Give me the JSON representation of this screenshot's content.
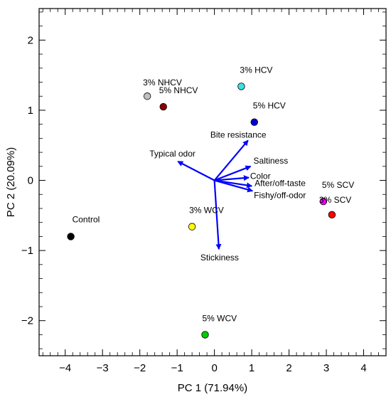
{
  "chart_data": {
    "type": "scatter",
    "xlabel": "PC 1 (71.94%)",
    "ylabel": "PC 2 (20.09%)",
    "xlim": [
      -4.7,
      4.6
    ],
    "ylim": [
      -2.5,
      2.45
    ],
    "xticks": [
      -4,
      -3,
      -2,
      -1,
      0,
      1,
      2,
      3,
      4
    ],
    "yticks": [
      -2,
      -1,
      0,
      1,
      2
    ],
    "grid": false,
    "points": [
      {
        "label": "Control",
        "x": -3.85,
        "y": -0.8,
        "color": "#000000"
      },
      {
        "label": "3% NHCV",
        "x": -1.8,
        "y": 1.2,
        "color": "#c0c0c0"
      },
      {
        "label": "5% NHCV",
        "x": -1.37,
        "y": 1.05,
        "color": "#8b0000"
      },
      {
        "label": "3% HCV",
        "x": 0.72,
        "y": 1.34,
        "color": "#40e0e0"
      },
      {
        "label": "5% HCV",
        "x": 1.07,
        "y": 0.83,
        "color": "#0000cd"
      },
      {
        "label": "3% WCV",
        "x": -0.6,
        "y": -0.66,
        "color": "#ffff00"
      },
      {
        "label": "5% WCV",
        "x": -0.25,
        "y": -2.2,
        "color": "#00cc00"
      },
      {
        "label": "5% SCV",
        "x": 2.92,
        "y": -0.3,
        "color": "#ff00ff"
      },
      {
        "label": "3% SCV",
        "x": 3.15,
        "y": -0.49,
        "color": "#ff0000"
      }
    ],
    "vectors": [
      {
        "label": "Bite resistance",
        "x": 0.9,
        "y": 0.57
      },
      {
        "label": "Typical odor",
        "x": -0.98,
        "y": 0.27
      },
      {
        "label": "Saltiness",
        "x": 0.97,
        "y": 0.2
      },
      {
        "label": "Color",
        "x": 0.92,
        "y": 0.04
      },
      {
        "label": "After/off-taste",
        "x": 1.0,
        "y": -0.08
      },
      {
        "label": "Fishy/off-odor",
        "x": 1.02,
        "y": -0.15
      },
      {
        "label": "Stickiness",
        "x": 0.12,
        "y": -0.98
      }
    ],
    "vector_color": "#0000ff"
  }
}
